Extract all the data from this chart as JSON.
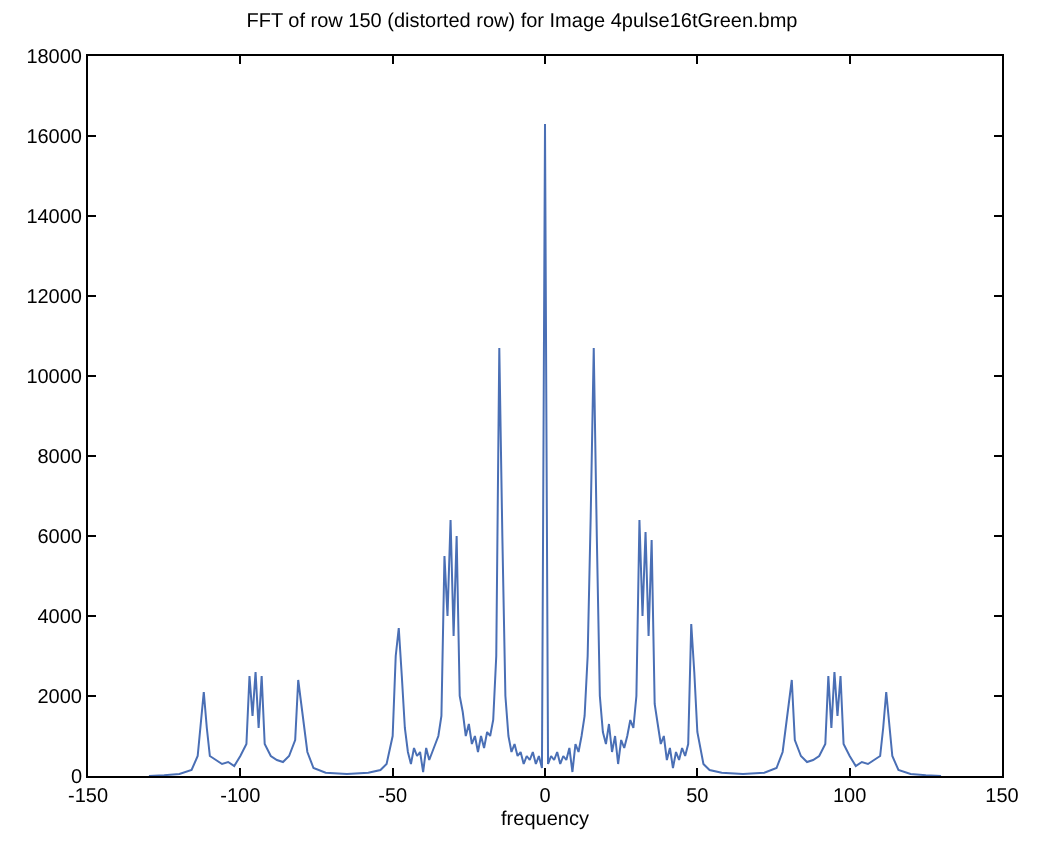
{
  "chart_data": {
    "type": "line",
    "title": "FFT of row 150 (distorted row) for Image 4pulse16tGreen.bmp",
    "xlabel": "frequency",
    "x": [
      -130,
      -125,
      -120,
      -116,
      -114,
      -112,
      -111,
      -110,
      -108,
      -106,
      -104,
      -102,
      -100,
      -98,
      -97,
      -96,
      -95,
      -94,
      -93,
      -92,
      -90,
      -88,
      -86,
      -84,
      -82,
      -81,
      -80,
      -78,
      -76,
      -72,
      -65,
      -58,
      -54,
      -52,
      -50,
      -49,
      -48,
      -47,
      -46,
      -45,
      -44,
      -43,
      -42,
      -41,
      -40,
      -39,
      -38,
      -37,
      -36,
      -35,
      -34,
      -33,
      -32,
      -31,
      -30,
      -29,
      -28,
      -27,
      -26,
      -25,
      -24,
      -23,
      -22,
      -21,
      -20,
      -19,
      -18,
      -17,
      -16,
      -15,
      -14,
      -13,
      -12,
      -11,
      -10,
      -9,
      -8,
      -7,
      -6,
      -5,
      -4,
      -3,
      -2,
      -1,
      0,
      1,
      2,
      3,
      4,
      5,
      6,
      7,
      8,
      9,
      10,
      11,
      12,
      13,
      14,
      15,
      16,
      17,
      18,
      19,
      20,
      21,
      22,
      23,
      24,
      25,
      26,
      27,
      28,
      29,
      30,
      31,
      32,
      33,
      34,
      35,
      36,
      37,
      38,
      39,
      40,
      41,
      42,
      43,
      44,
      45,
      46,
      47,
      48,
      49,
      50,
      52,
      54,
      58,
      65,
      72,
      76,
      78,
      80,
      81,
      82,
      84,
      86,
      88,
      90,
      92,
      93,
      94,
      95,
      96,
      97,
      98,
      100,
      102,
      104,
      106,
      108,
      110,
      111,
      112,
      114,
      116,
      120,
      125,
      130
    ],
    "series": [
      {
        "color": "#4a6fb5",
        "values": [
          0,
          20,
          50,
          150,
          500,
          2100,
          1200,
          500,
          400,
          300,
          350,
          250,
          500,
          800,
          2500,
          1500,
          2600,
          1200,
          2500,
          800,
          500,
          400,
          350,
          500,
          900,
          2400,
          1800,
          600,
          200,
          80,
          50,
          80,
          150,
          300,
          1000,
          3000,
          3700,
          2500,
          1200,
          600,
          300,
          700,
          500,
          600,
          100,
          700,
          400,
          600,
          800,
          1000,
          1500,
          5500,
          4000,
          6400,
          3500,
          6000,
          2000,
          1600,
          1000,
          1300,
          800,
          1000,
          600,
          1000,
          700,
          1100,
          1000,
          1400,
          3000,
          10700,
          6000,
          2000,
          1000,
          600,
          800,
          500,
          600,
          300,
          500,
          400,
          600,
          300,
          500,
          200,
          16300,
          300,
          500,
          400,
          600,
          300,
          500,
          400,
          700,
          100,
          800,
          600,
          1000,
          1500,
          3000,
          6500,
          10700,
          6000,
          2000,
          1100,
          800,
          1300,
          600,
          1000,
          300,
          900,
          700,
          1000,
          1400,
          1200,
          2000,
          6400,
          4000,
          6100,
          3500,
          5900,
          1800,
          1300,
          800,
          1000,
          400,
          700,
          200,
          600,
          400,
          700,
          500,
          800,
          3800,
          2600,
          1100,
          300,
          150,
          80,
          50,
          80,
          200,
          600,
          1800,
          2400,
          900,
          500,
          350,
          400,
          500,
          800,
          2500,
          1200,
          2600,
          1500,
          2500,
          800,
          500,
          250,
          350,
          300,
          400,
          500,
          1200,
          2100,
          500,
          150,
          50,
          20,
          0
        ]
      }
    ],
    "xlim": [
      -150,
      150
    ],
    "xticks": [
      -150,
      -100,
      -50,
      0,
      50,
      100,
      150
    ],
    "ylim": [
      0,
      18000
    ],
    "yticks": [
      0,
      2000,
      4000,
      6000,
      8000,
      10000,
      12000,
      14000,
      16000,
      18000
    ]
  }
}
